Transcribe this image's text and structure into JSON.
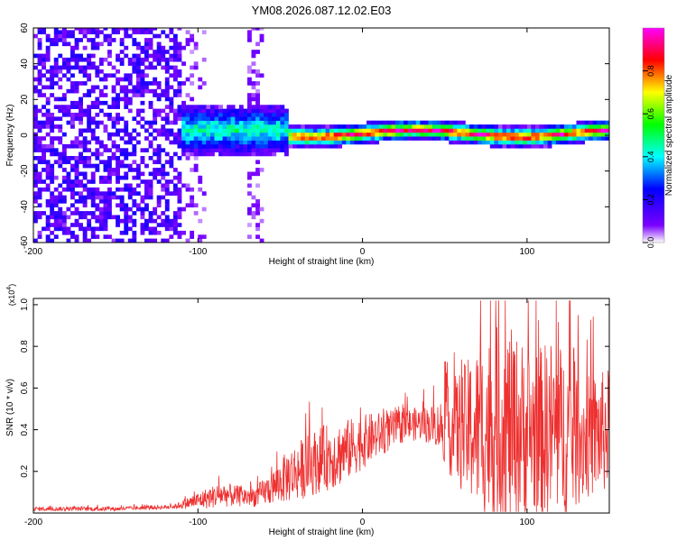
{
  "title": "YM08.2026.087.12.02.E03",
  "chart_data": [
    {
      "type": "heatmap",
      "ylabel": "Frequency (Hz)",
      "xlabel": "Height of straight line (km)",
      "xlim": [
        -200,
        150
      ],
      "ylim": [
        -60,
        60
      ],
      "x_ticks": [
        -200,
        -100,
        0,
        100
      ],
      "x_tick_labels": [
        "-200",
        "-100",
        "0",
        "100"
      ],
      "y_ticks": [
        -60,
        -40,
        -20,
        0,
        20,
        40,
        60
      ],
      "y_tick_labels": [
        "-60",
        "-40",
        "-20",
        "0",
        "20",
        "40",
        "60"
      ],
      "colorbar": {
        "label": "Normalized spectral amplitude",
        "range": [
          0,
          1
        ],
        "ticks": [
          0.0,
          0.2,
          0.4,
          0.6,
          0.8
        ],
        "tick_labels": [
          "0.0",
          "0.2",
          "0.4",
          "0.6",
          "0.8"
        ],
        "colormap": [
          "#ffffff",
          "#7a00ff",
          "#0000ff",
          "#00ffff",
          "#00ff00",
          "#ffff00",
          "#ff0000",
          "#ff00ff"
        ]
      },
      "regions": [
        {
          "name": "noise",
          "x": [
            -200,
            -110
          ],
          "freq": [
            -60,
            60
          ],
          "amplitude": 0.1
        },
        {
          "name": "faint-band",
          "x": [
            -110,
            -95
          ],
          "freq": [
            -60,
            60
          ],
          "amplitude": 0.05
        },
        {
          "name": "faint-band-2",
          "x": [
            -72,
            -60
          ],
          "freq": [
            -60,
            60
          ],
          "amplitude": 0.05
        },
        {
          "name": "signal-onset",
          "x": [
            -110,
            -45
          ],
          "freq": [
            -15,
            15
          ],
          "amplitude": 0.3
        },
        {
          "name": "signal-line",
          "x": [
            -45,
            150
          ],
          "freq": [
            -5,
            5
          ],
          "amplitude": 0.8
        }
      ]
    },
    {
      "type": "line",
      "ylabel": "SNR (10 * v/v)",
      "y_exponent_label": "(x10",
      "y_exponent_value": "4",
      "xlabel": "Height of straight line (km)",
      "xlim": [
        -200,
        150
      ],
      "ylim": [
        0,
        1.03
      ],
      "x_ticks": [
        -200,
        -100,
        0,
        100
      ],
      "x_tick_labels": [
        "-200",
        "-100",
        "0",
        "100"
      ],
      "y_ticks": [
        0.2,
        0.4,
        0.6,
        0.8,
        1.0
      ],
      "y_tick_labels": [
        "0.2",
        "0.4",
        "0.6",
        "0.8",
        "1.0"
      ],
      "series": [
        {
          "name": "SNR",
          "color": "#ee3030",
          "envelope_x": [
            -200,
            -150,
            -115,
            -105,
            -95,
            -85,
            -75,
            -65,
            -55,
            -45,
            -35,
            -25,
            -15,
            -5,
            5,
            15,
            25,
            35,
            45,
            55,
            65,
            75,
            85,
            95,
            105,
            115,
            125,
            135,
            145,
            150
          ],
          "envelope_mean": [
            0.02,
            0.02,
            0.03,
            0.05,
            0.07,
            0.09,
            0.08,
            0.08,
            0.12,
            0.18,
            0.22,
            0.26,
            0.28,
            0.32,
            0.36,
            0.39,
            0.42,
            0.43,
            0.42,
            0.4,
            0.4,
            0.4,
            0.42,
            0.4,
            0.38,
            0.4,
            0.38,
            0.36,
            0.38,
            0.4
          ],
          "envelope_spread": [
            0.01,
            0.01,
            0.01,
            0.03,
            0.05,
            0.06,
            0.05,
            0.05,
            0.08,
            0.13,
            0.15,
            0.16,
            0.16,
            0.14,
            0.12,
            0.1,
            0.08,
            0.08,
            0.1,
            0.25,
            0.35,
            0.45,
            0.5,
            0.45,
            0.4,
            0.45,
            0.4,
            0.3,
            0.3,
            0.3
          ]
        }
      ]
    }
  ]
}
